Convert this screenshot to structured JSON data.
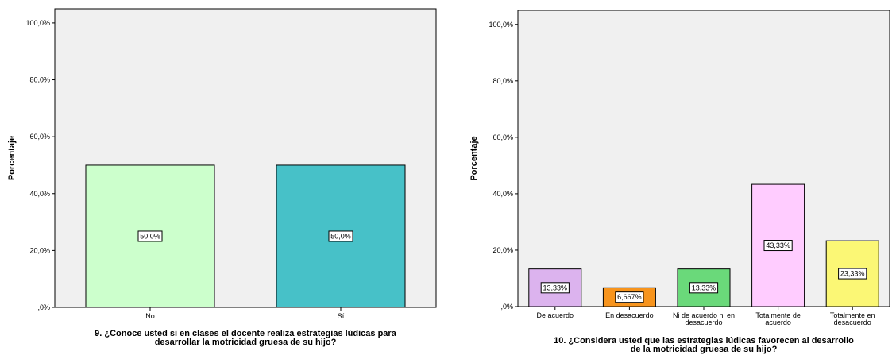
{
  "chart_data": [
    {
      "type": "bar",
      "ylabel": "Porcentaje",
      "xlabel_lines": [
        "9.  ¿Conoce usted si en clases el docente realiza estrategias lúdicas para",
        "desarrollar la motricidad gruesa de su hijo?"
      ],
      "ylim": [
        0,
        105
      ],
      "yticks": [
        0,
        20,
        40,
        60,
        80,
        100
      ],
      "ytick_labels": [
        ",0%",
        "20,0%",
        "40,0%",
        "60,0%",
        "80,0%",
        "100,0%"
      ],
      "grid": false,
      "categories": [
        {
          "label_lines": [
            "No"
          ],
          "value": 50.0,
          "label": "50,0%",
          "color": "#ccffcc"
        },
        {
          "label_lines": [
            "Sí"
          ],
          "value": 50.0,
          "label": "50,0%",
          "color": "#47c1c8"
        }
      ]
    },
    {
      "type": "bar",
      "ylabel": "Porcentaje",
      "xlabel_lines": [
        "10. ¿Considera usted que las estrategias lúdicas favorecen al desarrollo",
        "de la motricidad gruesa de su hijo?"
      ],
      "ylim": [
        0,
        105
      ],
      "yticks": [
        0,
        20,
        40,
        60,
        80,
        100
      ],
      "ytick_labels": [
        ",0%",
        "20,0%",
        "40,0%",
        "60,0%",
        "80,0%",
        "100,0%"
      ],
      "grid": false,
      "categories": [
        {
          "label_lines": [
            "De acuerdo"
          ],
          "value": 13.33,
          "label": "13,33%",
          "color": "#dcb3ee"
        },
        {
          "label_lines": [
            "En desacuerdo"
          ],
          "value": 6.667,
          "label": "6,667%",
          "color": "#f7941d"
        },
        {
          "label_lines": [
            "Ni de acuerdo ni en",
            "desacuerdo"
          ],
          "value": 13.33,
          "label": "13,33%",
          "color": "#6ad97a"
        },
        {
          "label_lines": [
            "Totalmente de",
            "acuerdo"
          ],
          "value": 43.33,
          "label": "43,33%",
          "color": "#ffccff"
        },
        {
          "label_lines": [
            "Totalmente en",
            "desacuerdo"
          ],
          "value": 23.33,
          "label": "23,33%",
          "color": "#fbf775"
        }
      ]
    }
  ]
}
